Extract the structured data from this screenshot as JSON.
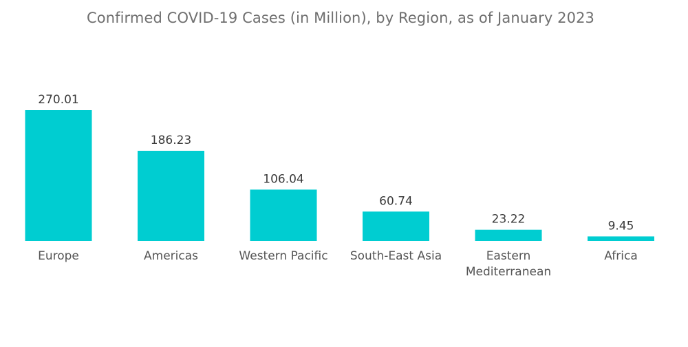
{
  "chart_data": {
    "type": "bar",
    "title": "Confirmed COVID-19 Cases (in Million), by Region, as of January 2023",
    "categories": [
      "Europe",
      "Americas",
      "Western Pacific",
      "South-East Asia",
      "Eastern Mediterranean",
      "Africa"
    ],
    "category_lines": [
      [
        "Europe"
      ],
      [
        "Americas"
      ],
      [
        "Western Pacific"
      ],
      [
        "South-East Asia"
      ],
      [
        "Eastern",
        "Mediterranean"
      ],
      [
        "Africa"
      ]
    ],
    "values": [
      270.01,
      186.23,
      106.04,
      60.74,
      23.22,
      9.45
    ],
    "value_labels": [
      "270.01",
      "186.23",
      "106.04",
      "60.74",
      "23.22",
      "9.45"
    ],
    "xlabel": "",
    "ylabel": "",
    "ylim": [
      0,
      270.01
    ],
    "grid": false,
    "legend": "none",
    "bar_color": "#00cdd1"
  }
}
